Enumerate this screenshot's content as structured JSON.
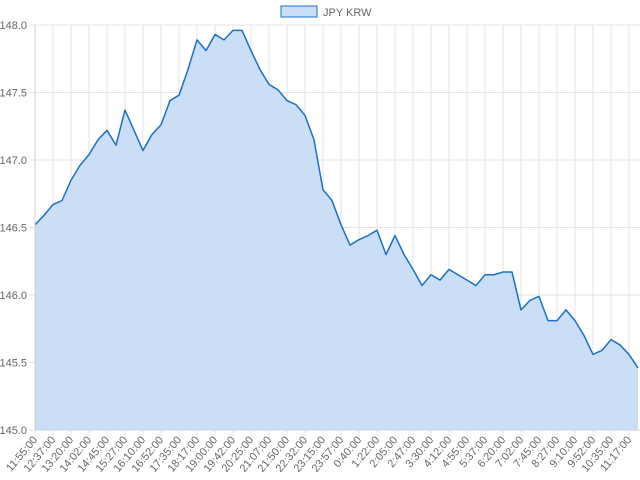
{
  "chart_data": {
    "type": "area",
    "categories": [
      "11:55:00",
      null,
      "12:37:00",
      null,
      "13:20:00",
      null,
      "14:02:00",
      null,
      "14:45:00",
      null,
      "15:27:00",
      null,
      "16:10:00",
      null,
      "16:52:00",
      null,
      "17:35:00",
      null,
      "18:17:00",
      null,
      "19:00:00",
      null,
      "19:42:00",
      null,
      "20:25:00",
      null,
      "21:07:00",
      null,
      "21:50:00",
      null,
      "22:32:00",
      null,
      "23:15:00",
      null,
      "23:57:00",
      null,
      "0:40:00",
      null,
      "1:22:00",
      null,
      "2:05:00",
      null,
      "2:47:00",
      null,
      "3:30:00",
      null,
      "4:12:00",
      null,
      "4:55:00",
      null,
      "5:37:00",
      null,
      "6:20:00",
      null,
      "7:02:00",
      null,
      "7:45:00",
      null,
      "8:27:00",
      null,
      "9:10:00",
      null,
      "9:52:00",
      null,
      "10:35:00",
      null,
      "11:17:00",
      null
    ],
    "series": [
      {
        "name": "JPY KRW",
        "color": "#1a6fc9",
        "fill": "#cadff5",
        "values": [
          146.52,
          146.59,
          146.67,
          146.7,
          146.85,
          146.96,
          147.04,
          147.15,
          147.22,
          147.11,
          147.37,
          147.22,
          147.07,
          147.19,
          147.26,
          147.44,
          147.48,
          147.67,
          147.89,
          147.81,
          147.93,
          147.89,
          147.96,
          147.96,
          147.81,
          147.67,
          147.56,
          147.52,
          147.44,
          147.41,
          147.33,
          147.15,
          146.78,
          146.7,
          146.52,
          146.37,
          146.41,
          146.44,
          146.48,
          146.3,
          146.44,
          146.3,
          146.19,
          146.07,
          146.15,
          146.11,
          146.19,
          146.15,
          146.11,
          146.07,
          146.15,
          146.15,
          146.17,
          146.17,
          145.89,
          145.96,
          145.99,
          145.81,
          145.81,
          145.89,
          145.81,
          145.7,
          145.56,
          145.59,
          145.67,
          145.63,
          145.56,
          145.46
        ]
      }
    ],
    "ylim": [
      145.0,
      148.0
    ],
    "yticks": [
      {
        "value": 145,
        "label": "145.0"
      },
      145.5,
      {
        "value": 146,
        "label": "146.0"
      },
      146.5,
      {
        "value": 147,
        "label": "147.0"
      },
      147.5,
      {
        "value": 148,
        "label": "148.0"
      }
    ],
    "grid": true,
    "legend": "top"
  }
}
